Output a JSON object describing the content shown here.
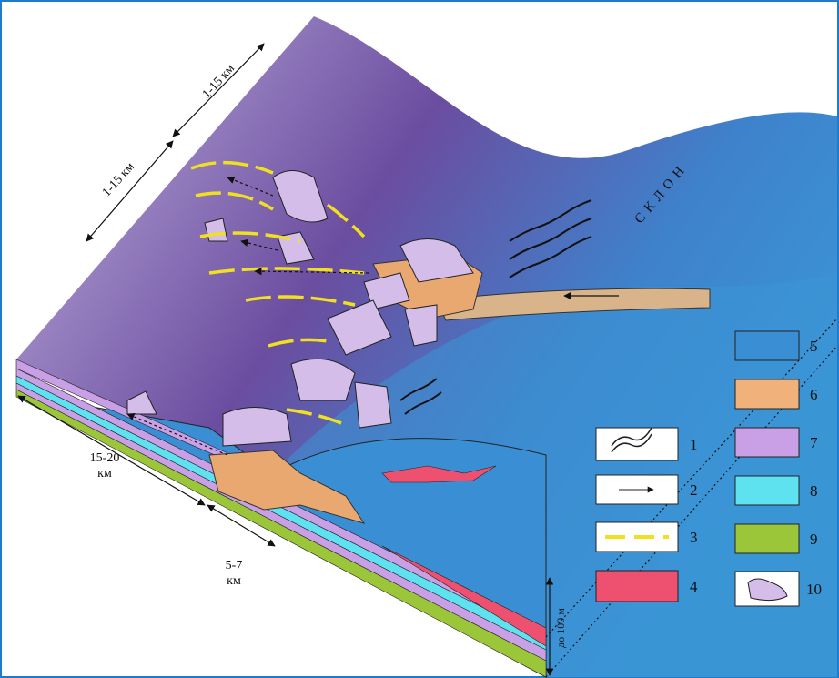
{
  "dimensions": {
    "width_top": "1-15 км",
    "width_left": "1-15 км",
    "length_a": [
      "15-20",
      "км"
    ],
    "length_b": [
      "5-7",
      "км"
    ],
    "depth": "до 100 м"
  },
  "slope_label": "СКЛОН",
  "legend": [
    {
      "label": "1"
    },
    {
      "label": "2"
    },
    {
      "label": "3"
    },
    {
      "label": "4"
    },
    {
      "label": "5"
    },
    {
      "label": "6"
    },
    {
      "label": "7"
    },
    {
      "label": "8"
    },
    {
      "label": "9"
    },
    {
      "label": "10"
    }
  ]
}
